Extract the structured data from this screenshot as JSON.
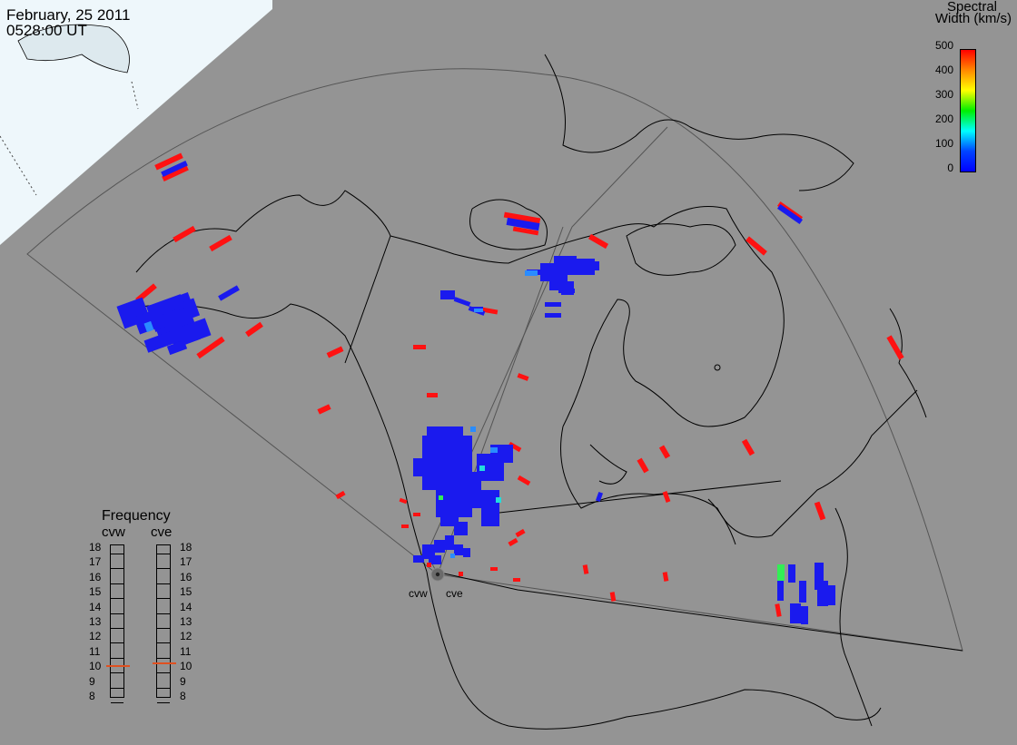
{
  "header": {
    "date": "February, 25 2011",
    "time": "0528:00 UT"
  },
  "colorbar": {
    "title_line1": "Spectral",
    "title_line2": "Width (km/s)",
    "ticks": [
      "500",
      "400",
      "300",
      "200",
      "100",
      "0"
    ],
    "gradient": [
      "#ff0000",
      "#ff8800",
      "#ffff00",
      "#00ee00",
      "#00ffff",
      "#0044ff",
      "#0000ff"
    ]
  },
  "frequency": {
    "title": "Frequency",
    "radars": [
      {
        "name": "cvw",
        "value_mhz": 10.5
      },
      {
        "name": "cve",
        "value_mhz": 10.7
      }
    ],
    "scale": [
      "18",
      "17",
      "16",
      "15",
      "14",
      "13",
      "12",
      "11",
      "10",
      "9",
      "8"
    ],
    "indicator_color": "#e05020"
  },
  "radar_labels": {
    "left": "cvw",
    "right": "cve"
  },
  "colors": {
    "background": "#949494",
    "land_outline": "#000000",
    "fov_outline": "#555555",
    "daylight": "#eef7fb",
    "high_width": "#ff1111",
    "low_width": "#1a1aee",
    "mid_width": "#2a8cff",
    "cyan_width": "#22dddd",
    "green_width": "#33ee55"
  },
  "icons": {
    "radar_site": "radar-site-icon"
  }
}
